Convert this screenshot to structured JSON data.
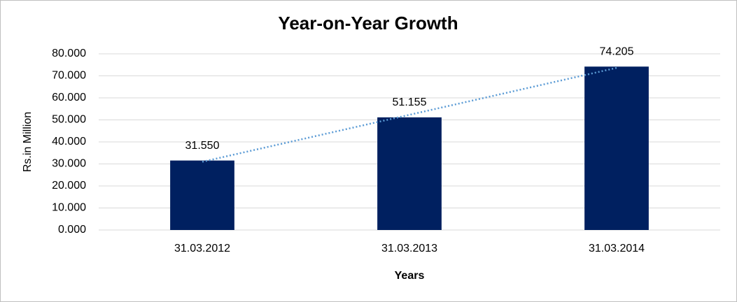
{
  "chart_data": {
    "type": "bar",
    "title": "Year-on-Year Growth",
    "x_label": "Years",
    "y_label": "Rs.in Million",
    "categories": [
      "31.03.2012",
      "31.03.2013",
      "31.03.2014"
    ],
    "values": [
      31.55,
      51.155,
      74.205
    ],
    "value_labels": [
      "31.550",
      "51.155",
      "74.205"
    ],
    "color": "#002060",
    "trendline": "linear",
    "trendline_color": "#5b9bd5",
    "ylim": [
      0,
      80
    ],
    "yticks": [
      {
        "value": 0,
        "label": "0.000"
      },
      {
        "value": 10,
        "label": "10.000"
      },
      {
        "value": 20,
        "label": "20.000"
      },
      {
        "value": 30,
        "label": "30.000"
      },
      {
        "value": 40,
        "label": "40.000"
      },
      {
        "value": 50,
        "label": "50.000"
      },
      {
        "value": 60,
        "label": "60.000"
      },
      {
        "value": 70,
        "label": "70.000"
      },
      {
        "value": 80,
        "label": "80.000"
      }
    ],
    "grid": true
  }
}
